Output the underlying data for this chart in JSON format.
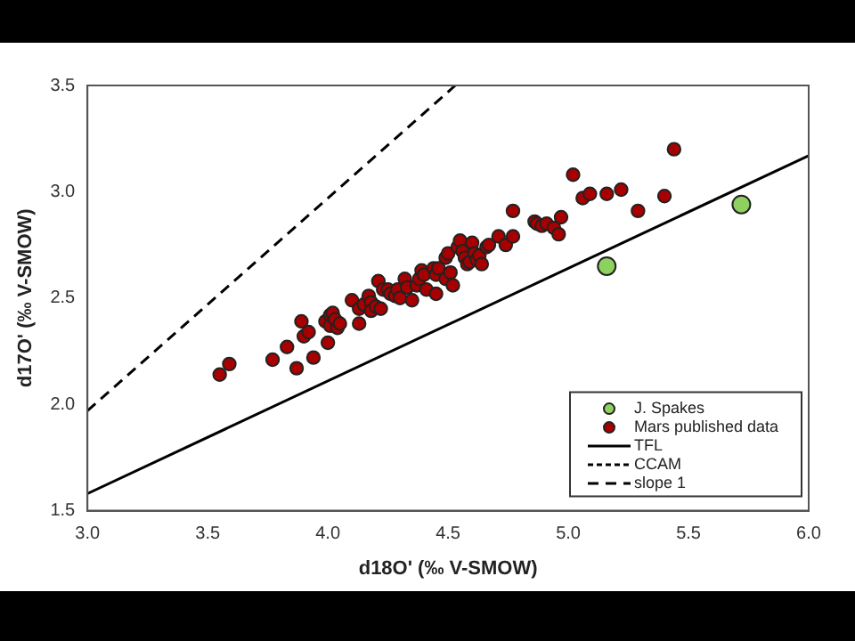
{
  "chart_data": {
    "type": "scatter",
    "xlabel": "d18O' (‰ V-SMOW)",
    "ylabel": "d17O' (‰ V-SMOW)",
    "xlim": [
      3,
      6
    ],
    "ylim": [
      1.5,
      3.5
    ],
    "xticks": [
      {
        "value": 3,
        "label": "3.0"
      },
      {
        "value": 3.5,
        "label": "3.5"
      },
      {
        "value": 4,
        "label": "4.0"
      },
      {
        "value": 4.5,
        "label": "4.5"
      },
      {
        "value": 5,
        "label": "5.0"
      },
      {
        "value": 5.5,
        "label": "5.5"
      },
      {
        "value": 6,
        "label": "6.0"
      }
    ],
    "yticks": [
      {
        "value": 1.5,
        "label": "1.5"
      },
      {
        "value": 2,
        "label": "2.0"
      },
      {
        "value": 2.5,
        "label": "2.5"
      },
      {
        "value": 3,
        "label": "3.0"
      },
      {
        "value": 3.5,
        "label": "3.5"
      }
    ],
    "grid": false,
    "legend": "bottom right",
    "series": [
      {
        "name": "J. Spakes",
        "marker": "circle",
        "color": "#8fd160",
        "x": [
          5.16,
          5.72
        ],
        "values": [
          2.65,
          2.94
        ]
      },
      {
        "name": "Mars published data",
        "marker": "circle",
        "color": "#a80000",
        "x": [
          3.55,
          3.59,
          3.77,
          3.83,
          3.87,
          3.89,
          3.9,
          3.92,
          3.94,
          4.0,
          3.99,
          4.01,
          4.02,
          4.01,
          4.03,
          4.04,
          4.05,
          4.1,
          4.13,
          4.13,
          4.15,
          4.17,
          4.18,
          4.18,
          4.2,
          4.22,
          4.21,
          4.23,
          4.25,
          4.26,
          4.28,
          4.29,
          4.3,
          4.32,
          4.33,
          4.35,
          4.37,
          4.38,
          4.39,
          4.4,
          4.41,
          4.44,
          4.45,
          4.45,
          4.46,
          4.49,
          4.49,
          4.5,
          4.51,
          4.52,
          4.54,
          4.55,
          4.56,
          4.57,
          4.58,
          4.59,
          4.6,
          4.61,
          4.62,
          4.63,
          4.64,
          4.66,
          4.67,
          4.71,
          4.74,
          4.77,
          4.77,
          4.86,
          4.87,
          4.89,
          4.91,
          4.94,
          4.96,
          4.97,
          5.02,
          5.06,
          5.09,
          5.16,
          5.22,
          5.29,
          5.4,
          5.44
        ],
        "values": [
          2.14,
          2.19,
          2.21,
          2.27,
          2.17,
          2.39,
          2.32,
          2.34,
          2.22,
          2.29,
          2.39,
          2.42,
          2.43,
          2.37,
          2.4,
          2.36,
          2.38,
          2.49,
          2.45,
          2.38,
          2.47,
          2.51,
          2.48,
          2.44,
          2.46,
          2.45,
          2.58,
          2.54,
          2.54,
          2.52,
          2.51,
          2.54,
          2.5,
          2.59,
          2.55,
          2.49,
          2.56,
          2.59,
          2.63,
          2.61,
          2.54,
          2.64,
          2.61,
          2.52,
          2.64,
          2.59,
          2.69,
          2.71,
          2.62,
          2.56,
          2.74,
          2.77,
          2.72,
          2.69,
          2.66,
          2.67,
          2.76,
          2.71,
          2.68,
          2.7,
          2.66,
          2.74,
          2.75,
          2.79,
          2.75,
          2.91,
          2.79,
          2.86,
          2.85,
          2.84,
          2.85,
          2.83,
          2.8,
          2.88,
          3.08,
          2.97,
          2.99,
          2.99,
          3.01,
          2.91,
          2.98,
          3.2
        ]
      },
      {
        "name": "TFL",
        "type": "line",
        "marker": "none",
        "color": "#000000",
        "line_style": "solid",
        "x": [
          3,
          6
        ],
        "values": [
          1.58,
          3.17
        ]
      },
      {
        "name": "CCAM",
        "type": "line",
        "marker": "none",
        "color": "#000000",
        "line_style": "dotted"
      },
      {
        "name": "slope 1",
        "type": "line",
        "marker": "none",
        "color": "#000000",
        "line_style": "dashed",
        "x": [
          3,
          4.53
        ],
        "values": [
          1.97,
          3.5
        ]
      }
    ]
  }
}
